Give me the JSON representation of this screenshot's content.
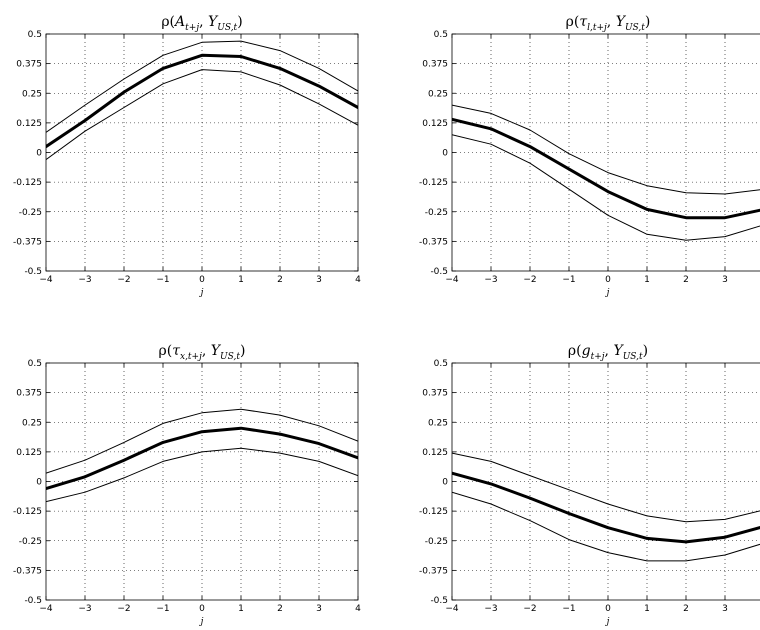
{
  "chart_data": [
    {
      "type": "line",
      "title": "ρ(A_{t+j}, Y_{US,t})",
      "title_parts": {
        "base": "ρ(",
        "a": "A",
        "a_sub": "t+j",
        "sep": ", Y",
        "b_sub": "US,t",
        "close": ")"
      },
      "xlabel": "j",
      "x": [
        -4,
        -3,
        -2,
        -1,
        0,
        1,
        2,
        3,
        4
      ],
      "xlim": [
        -4,
        4
      ],
      "ylim": [
        -0.5,
        0.5
      ],
      "xticks": [
        "−4",
        "−3",
        "−2",
        "−1",
        "0",
        "1",
        "2",
        "3",
        "4"
      ],
      "yticks": [
        "0.5",
        "0.375",
        "0.25",
        "0.125",
        "0",
        "-0.125",
        "-0.25",
        "-0.375",
        "-0.5"
      ],
      "grid": true,
      "series": [
        {
          "role": "upper",
          "values": [
            0.085,
            0.2,
            0.31,
            0.41,
            0.465,
            0.47,
            0.43,
            0.355,
            0.26
          ]
        },
        {
          "role": "estimate",
          "values": [
            0.025,
            0.135,
            0.255,
            0.355,
            0.41,
            0.405,
            0.355,
            0.28,
            0.19
          ]
        },
        {
          "role": "lower",
          "values": [
            -0.03,
            0.09,
            0.19,
            0.29,
            0.35,
            0.34,
            0.285,
            0.205,
            0.115
          ]
        }
      ]
    },
    {
      "type": "line",
      "title": "ρ(τ_{l,t+j}, Y_{US,t})",
      "title_parts": {
        "base": "ρ(",
        "a": "τ",
        "a_sub": "l,t+j",
        "sep": ", Y",
        "b_sub": "US,t",
        "close": ")"
      },
      "xlabel": "j",
      "x": [
        -4,
        -3,
        -2,
        -1,
        0,
        1,
        2,
        3,
        4
      ],
      "xlim": [
        -4,
        4
      ],
      "ylim": [
        -0.5,
        0.5
      ],
      "xticks": [
        "−4",
        "−3",
        "−2",
        "−1",
        "0",
        "1",
        "2",
        "3",
        ""
      ],
      "yticks": [
        "0.5",
        "0.375",
        "0.25",
        "0.125",
        "0",
        "-0.125",
        "-0.25",
        "-0.375",
        "-0.5"
      ],
      "grid": true,
      "series": [
        {
          "role": "upper",
          "values": [
            0.2,
            0.165,
            0.095,
            -0.005,
            -0.085,
            -0.14,
            -0.17,
            -0.175,
            -0.155
          ]
        },
        {
          "role": "estimate",
          "values": [
            0.14,
            0.1,
            0.025,
            -0.07,
            -0.165,
            -0.24,
            -0.275,
            -0.275,
            -0.24
          ]
        },
        {
          "role": "lower",
          "values": [
            0.075,
            0.035,
            -0.045,
            -0.155,
            -0.265,
            -0.345,
            -0.37,
            -0.355,
            -0.305
          ]
        }
      ]
    },
    {
      "type": "line",
      "title": "ρ(τ_{x,t+j}, Y_{US,t})",
      "title_parts": {
        "base": "ρ(",
        "a": "τ",
        "a_sub": "x,t+j",
        "sep": ", Y",
        "b_sub": "US,t",
        "close": ")"
      },
      "xlabel": "j",
      "x": [
        -4,
        -3,
        -2,
        -1,
        0,
        1,
        2,
        3,
        4
      ],
      "xlim": [
        -4,
        4
      ],
      "ylim": [
        -0.5,
        0.5
      ],
      "xticks": [
        "−4",
        "−3",
        "−2",
        "−1",
        "0",
        "1",
        "2",
        "3",
        "4"
      ],
      "yticks": [
        "0.5",
        "0.375",
        "0.25",
        "0.125",
        "0",
        "-0.125",
        "-0.25",
        "-0.375",
        "-0.5"
      ],
      "grid": true,
      "series": [
        {
          "role": "upper",
          "values": [
            0.035,
            0.09,
            0.165,
            0.245,
            0.29,
            0.305,
            0.28,
            0.235,
            0.17
          ]
        },
        {
          "role": "estimate",
          "values": [
            -0.03,
            0.02,
            0.09,
            0.165,
            0.21,
            0.225,
            0.2,
            0.16,
            0.1
          ]
        },
        {
          "role": "lower",
          "values": [
            -0.085,
            -0.045,
            0.015,
            0.085,
            0.125,
            0.14,
            0.12,
            0.085,
            0.025
          ]
        }
      ]
    },
    {
      "type": "line",
      "title": "ρ(g_{t+j}, Y_{US,t})",
      "title_parts": {
        "base": "ρ(",
        "a": "g",
        "a_sub": "t+j",
        "sep": ", Y",
        "b_sub": "US,t",
        "close": ")"
      },
      "xlabel": "j",
      "x": [
        -4,
        -3,
        -2,
        -1,
        0,
        1,
        2,
        3,
        4
      ],
      "xlim": [
        -4,
        4
      ],
      "ylim": [
        -0.5,
        0.5
      ],
      "xticks": [
        "−4",
        "−3",
        "−2",
        "−1",
        "0",
        "1",
        "2",
        "3",
        ""
      ],
      "yticks": [
        "0.5",
        "0.375",
        "0.25",
        "0.125",
        "0",
        "-0.125",
        "-0.25",
        "-0.375",
        "-0.5"
      ],
      "grid": true,
      "series": [
        {
          "role": "upper",
          "values": [
            0.12,
            0.085,
            0.025,
            -0.035,
            -0.095,
            -0.145,
            -0.17,
            -0.16,
            -0.12
          ]
        },
        {
          "role": "estimate",
          "values": [
            0.035,
            -0.01,
            -0.07,
            -0.135,
            -0.195,
            -0.24,
            -0.255,
            -0.235,
            -0.19
          ]
        },
        {
          "role": "lower",
          "values": [
            -0.045,
            -0.095,
            -0.165,
            -0.245,
            -0.3,
            -0.335,
            -0.335,
            -0.31,
            -0.26
          ]
        }
      ]
    }
  ]
}
